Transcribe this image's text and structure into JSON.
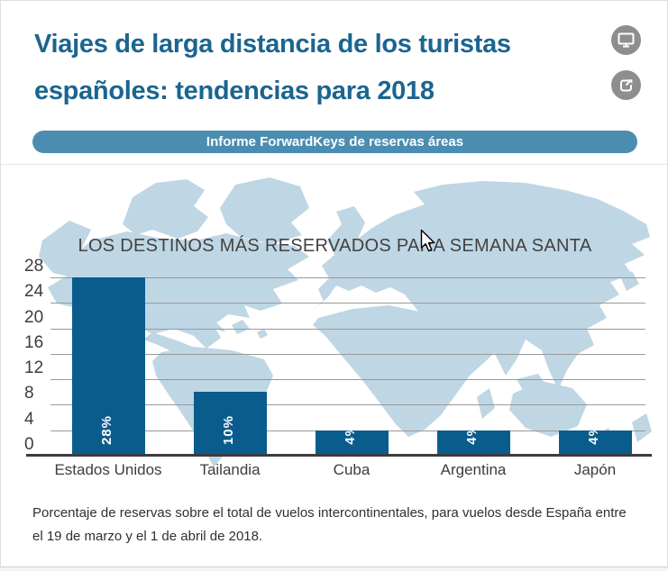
{
  "header": {
    "title": "Viajes de larga distancia de los turistas españoles: tendencias para 2018",
    "banner": "Informe ForwardKeys de reservas áreas",
    "actions": [
      {
        "icon": "monitor-icon"
      },
      {
        "icon": "share-icon"
      }
    ]
  },
  "chart_data": {
    "type": "bar",
    "title": "LOS DESTINOS MÁS RESERVADOS PARA SEMANA SANTA",
    "categories": [
      "Estados Unidos",
      "Tailandia",
      "Cuba",
      "Argentina",
      "Japón"
    ],
    "values": [
      28,
      10,
      4,
      4,
      4
    ],
    "bar_labels": [
      "28%",
      "10%",
      "4%",
      "4%",
      "4%"
    ],
    "yticks": [
      28,
      24,
      20,
      16,
      12,
      8,
      4,
      0
    ],
    "ylim": [
      0,
      28
    ],
    "xlabel": "",
    "ylabel": "",
    "grid": true,
    "legend": false,
    "background": "world-map"
  },
  "footer": {
    "note": "Porcentaje de reservas sobre el total de vuelos intercontinentales, para vuelos desde España entre el 19 de marzo y el 1 de abril de 2018."
  },
  "colors": {
    "title_blue": "#1b6590",
    "banner_blue": "#4b8db1",
    "bar_blue": "#0a5c8d",
    "map_blue": "#bfd6e4",
    "text_dark": "#3d3d3d",
    "grid_gray": "#999999",
    "axis_dark": "#3c3c3c",
    "icon_gray": "#8e8e8e",
    "footer_gray": "#303030",
    "border_gray": "#dedede"
  }
}
